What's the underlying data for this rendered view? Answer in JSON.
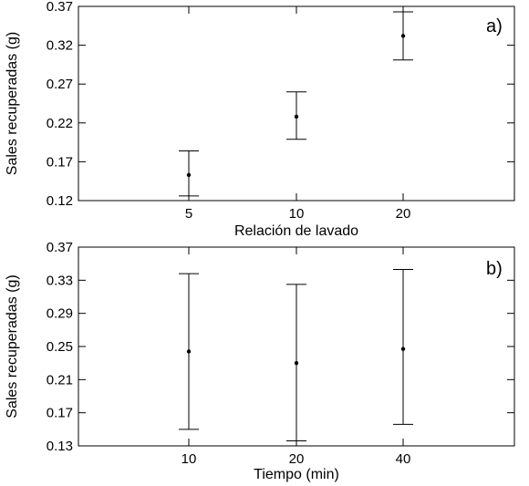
{
  "chart_data": [
    {
      "type": "scatter",
      "panel_label": "a)",
      "xlabel": "Relación de lavado",
      "ylabel": "Sales recuperadas (g)",
      "categories": [
        "5",
        "10",
        "20"
      ],
      "values": [
        0.153,
        0.228,
        0.332
      ],
      "error_low": [
        0.126,
        0.199,
        0.301
      ],
      "error_high": [
        0.184,
        0.26,
        0.363
      ],
      "ylim": [
        0.12,
        0.37
      ],
      "yticks": [
        "0.12",
        "0.17",
        "0.22",
        "0.27",
        "0.32",
        "0.37"
      ],
      "grid": false,
      "marker_color": "#000000"
    },
    {
      "type": "scatter",
      "panel_label": "b)",
      "xlabel": "Tiempo (min)",
      "ylabel": "Sales recuperadas (g)",
      "categories": [
        "10",
        "20",
        "40"
      ],
      "values": [
        0.244,
        0.23,
        0.247
      ],
      "error_low": [
        0.15,
        0.136,
        0.156
      ],
      "error_high": [
        0.338,
        0.325,
        0.343
      ],
      "ylim": [
        0.13,
        0.37
      ],
      "yticks": [
        "0.13",
        "0.17",
        "0.21",
        "0.25",
        "0.29",
        "0.33",
        "0.37"
      ],
      "grid": false,
      "marker_color": "#000000"
    }
  ]
}
